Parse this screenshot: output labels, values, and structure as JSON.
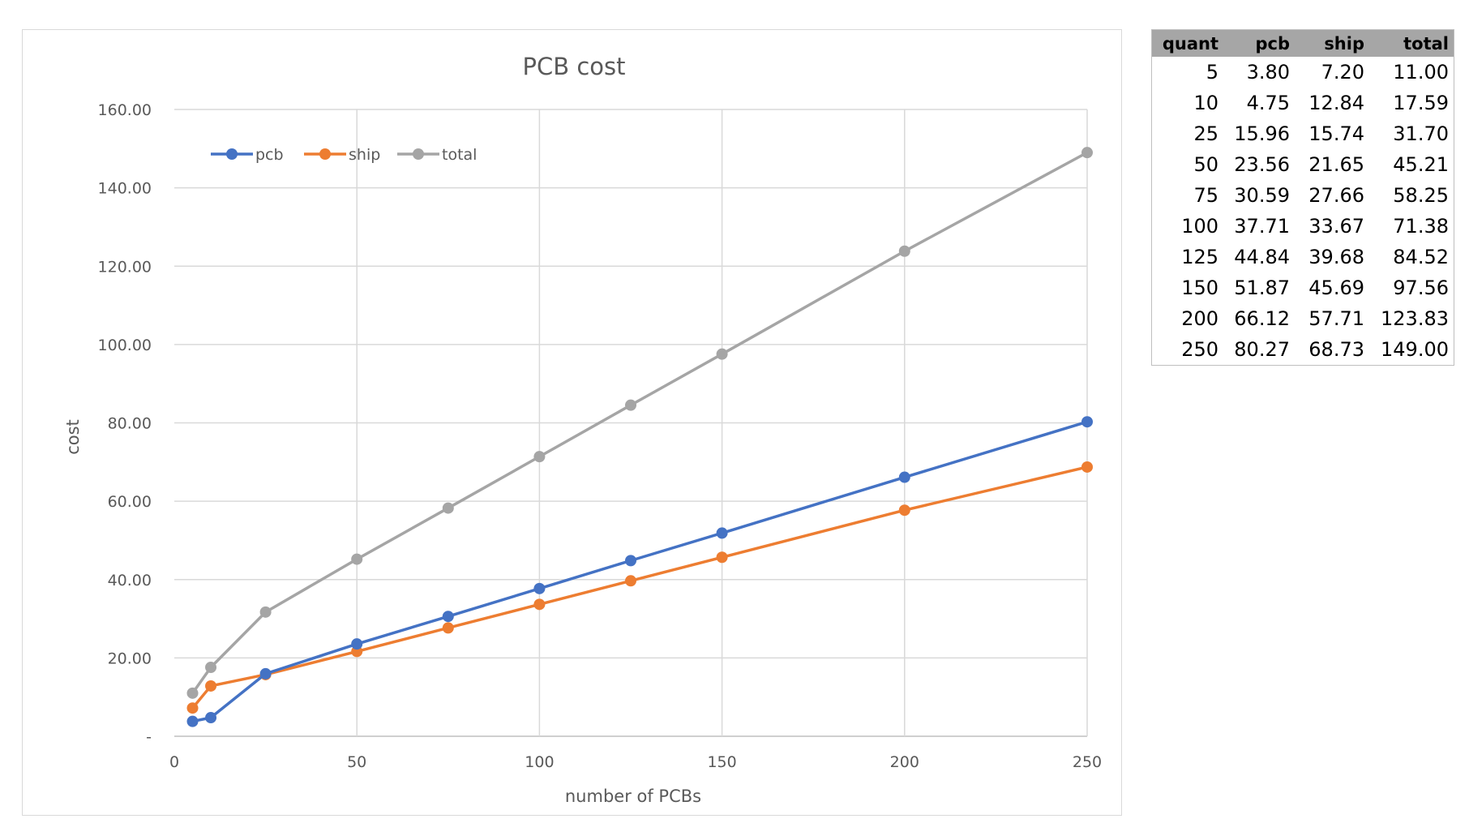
{
  "chart_data": {
    "type": "line",
    "title": "PCB cost",
    "xlabel": "number of PCBs",
    "ylabel": "cost",
    "xlim": [
      0,
      250
    ],
    "ylim": [
      0,
      160
    ],
    "x_ticks": [
      "0",
      "50",
      "100",
      "150",
      "200",
      "250"
    ],
    "y_ticks": [
      "-",
      "20.00",
      "40.00",
      "60.00",
      "80.00",
      "100.00",
      "120.00",
      "140.00",
      "160.00"
    ],
    "grid": true,
    "legend_position": "top-left",
    "x": [
      5,
      10,
      25,
      50,
      75,
      100,
      125,
      150,
      200,
      250
    ],
    "series": [
      {
        "name": "pcb",
        "color": "#4472c4",
        "values": [
          3.8,
          4.75,
          15.96,
          23.56,
          30.59,
          37.71,
          44.84,
          51.87,
          66.12,
          80.27
        ]
      },
      {
        "name": "ship",
        "color": "#ed7d31",
        "values": [
          7.2,
          12.84,
          15.74,
          21.65,
          27.66,
          33.67,
          39.68,
          45.69,
          57.71,
          68.73
        ]
      },
      {
        "name": "total",
        "color": "#a5a5a5",
        "values": [
          11.0,
          17.59,
          31.7,
          45.21,
          58.25,
          71.38,
          84.52,
          97.56,
          123.83,
          149.0
        ]
      }
    ]
  },
  "table": {
    "headers": [
      "quant",
      "pcb",
      "ship",
      "total"
    ],
    "rows": [
      [
        "5",
        "3.80",
        "7.20",
        "11.00"
      ],
      [
        "10",
        "4.75",
        "12.84",
        "17.59"
      ],
      [
        "25",
        "15.96",
        "15.74",
        "31.70"
      ],
      [
        "50",
        "23.56",
        "21.65",
        "45.21"
      ],
      [
        "75",
        "30.59",
        "27.66",
        "58.25"
      ],
      [
        "100",
        "37.71",
        "33.67",
        "71.38"
      ],
      [
        "125",
        "44.84",
        "39.68",
        "84.52"
      ],
      [
        "150",
        "51.87",
        "45.69",
        "97.56"
      ],
      [
        "200",
        "66.12",
        "57.71",
        "123.83"
      ],
      [
        "250",
        "80.27",
        "68.73",
        "149.00"
      ]
    ]
  }
}
